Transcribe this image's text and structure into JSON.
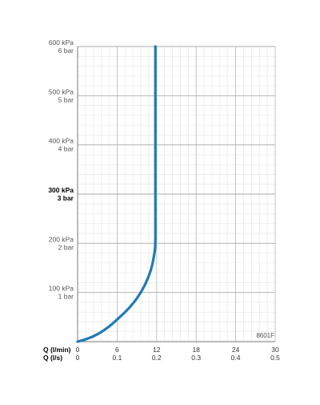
{
  "chart_data": {
    "type": "line",
    "code_label": "8601F",
    "xlabel_primary": "Q (l/min)",
    "xlabel_secondary": "Q (l/s)",
    "x_ticks_primary": [
      "0",
      "6",
      "12",
      "18",
      "24",
      "30"
    ],
    "x_ticks_secondary": [
      "0",
      "0.1",
      "0.2",
      "0.3",
      "0.4",
      "0.5"
    ],
    "xlim": [
      0,
      30
    ],
    "ylim": [
      0,
      600
    ],
    "y_ticks": [
      {
        "value": 100,
        "kpa": "100 kPa",
        "bar": "1 bar",
        "emphasis": false
      },
      {
        "value": 200,
        "kpa": "200 kPa",
        "bar": "2 bar",
        "emphasis": false
      },
      {
        "value": 300,
        "kpa": "300 kPa",
        "bar": "3 bar",
        "emphasis": true
      },
      {
        "value": 400,
        "kpa": "400 kPa",
        "bar": "4 bar",
        "emphasis": false
      },
      {
        "value": 500,
        "kpa": "500 kPa",
        "bar": "5 bar",
        "emphasis": false
      },
      {
        "value": 600,
        "kpa": "600 kPa",
        "bar": "6 bar",
        "emphasis": false
      }
    ],
    "grid": true,
    "series": [
      {
        "color": "#1f7ab8",
        "points": [
          [
            0,
            0
          ],
          [
            1.5,
            6
          ],
          [
            3,
            15
          ],
          [
            4.5,
            28
          ],
          [
            6,
            45
          ],
          [
            7.5,
            64
          ],
          [
            9,
            88
          ],
          [
            10.2,
            115
          ],
          [
            11.1,
            145
          ],
          [
            11.6,
            175
          ],
          [
            11.8,
            205
          ],
          [
            11.8,
            300
          ],
          [
            11.8,
            400
          ],
          [
            11.8,
            500
          ],
          [
            11.8,
            600
          ]
        ]
      }
    ]
  }
}
